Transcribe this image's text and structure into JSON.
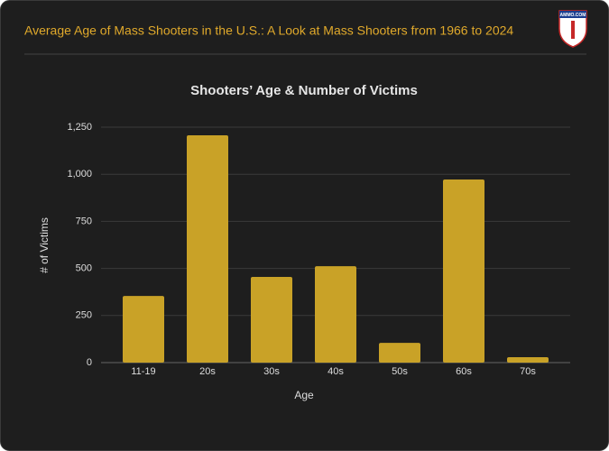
{
  "header": {
    "title": "Average Age of Mass Shooters in the U.S.: A Look at Mass Shooters from 1966 to 2024",
    "logo": "AMMO.COM"
  },
  "chart_data": {
    "type": "bar",
    "title": "Shooters’ Age & Number of Victims",
    "x_label": "Age",
    "y_label": "# of Victims",
    "categories": [
      "11-19",
      "20s",
      "30s",
      "40s",
      "50s",
      "60s",
      "70s"
    ],
    "values": [
      354,
      1207,
      455,
      512,
      105,
      972,
      29
    ],
    "color": "#c9a227",
    "ylim": [
      0,
      1250
    ],
    "yticks": [
      0,
      250,
      500,
      750,
      {
        "value": 1000,
        "label": "1,000"
      },
      {
        "value": 1250,
        "label": "1,250"
      }
    ],
    "grid": true
  }
}
